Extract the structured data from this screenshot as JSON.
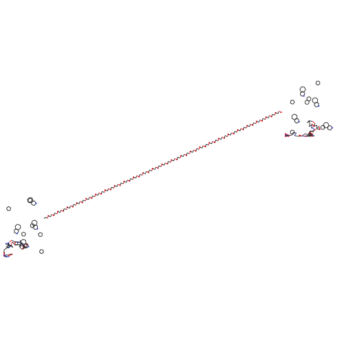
{
  "image": {
    "background": "#ffffff",
    "description_colors": {
      "carbon_bond": "#222222",
      "oxygen": "#e8101a",
      "nitrogen": "#2b3bd8"
    }
  },
  "diagram": {
    "kind": "skeletal-structure",
    "left_cluster": "peptide-head-left",
    "linker": "polyethylene-glycol-chain",
    "right_cluster": "peptide-head-right"
  }
}
